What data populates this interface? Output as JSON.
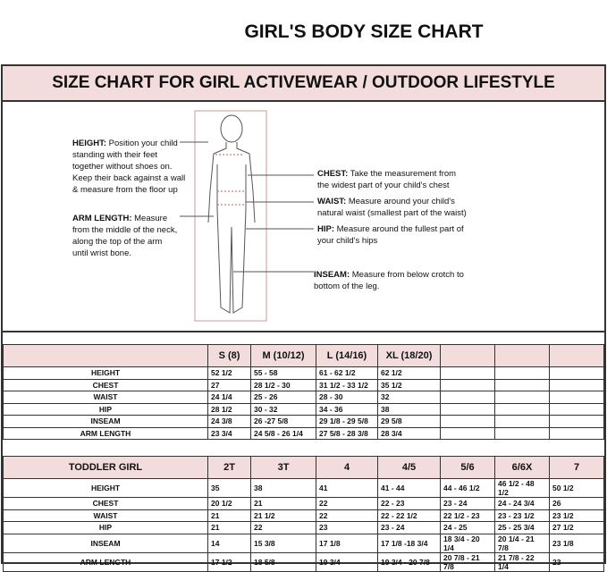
{
  "title": "GIRL'S BODY SIZE CHART",
  "subtitle": "SIZE CHART FOR GIRL ACTIVEWEAR / OUTDOOR LIFESTYLE",
  "notes": {
    "height": {
      "label": "HEIGHT:",
      "text": "Position your child standing with their feet together without shoes on. Keep their back against a wall & measure from the floor up"
    },
    "arm": {
      "label": "ARM LENGTH:",
      "text": "Measure from the middle of the neck, along the top of the arm until wrist bone."
    },
    "chest": {
      "label": "CHEST:",
      "text": "Take the measurement from the widest part of your child's chest"
    },
    "waist": {
      "label": "WAIST:",
      "text": "Measure around your child's natural waist (smallest part of the waist)"
    },
    "hip": {
      "label": "HIP:",
      "text": "Measure around the fullest part of your child's hips"
    },
    "inseam": {
      "label": "INSEAM:",
      "text": "Measure from below crotch to bottom of the leg."
    }
  },
  "girls_table": {
    "headers": [
      "",
      "S (8)",
      "M (10/12)",
      "L (14/16)",
      "XL (18/20)",
      "",
      "",
      ""
    ],
    "rows": [
      [
        "HEIGHT",
        "52 1/2",
        "55 - 58",
        "61 - 62 1/2",
        "62 1/2",
        "",
        "",
        ""
      ],
      [
        "CHEST",
        "27",
        "28 1/2 - 30",
        "31 1/2 - 33 1/2",
        "35 1/2",
        "",
        "",
        ""
      ],
      [
        "WAIST",
        "24 1/4",
        "25 - 26",
        "28 - 30",
        "32",
        "",
        "",
        ""
      ],
      [
        "HIP",
        "28 1/2",
        "30 - 32",
        "34 - 36",
        "38",
        "",
        "",
        ""
      ],
      [
        "INSEAM",
        "24 3/8",
        "26 -27 5/8",
        "29 1/8 - 29 5/8",
        "29 5/8",
        "",
        "",
        ""
      ],
      [
        "ARM LENGTH",
        "23 3/4",
        "24 5/8 - 26 1/4",
        "27 5/8 - 28 3/8",
        "28 3/4",
        "",
        "",
        ""
      ]
    ]
  },
  "toddler_table": {
    "headers": [
      "TODDLER GIRL",
      "2T",
      "3T",
      "4",
      "4/5",
      "5/6",
      "6/6X",
      "7"
    ],
    "rows": [
      [
        "HEIGHT",
        "35",
        "38",
        "41",
        "41 - 44",
        "44 - 46 1/2",
        "46 1/2 - 48 1/2",
        "50 1/2"
      ],
      [
        "CHEST",
        "20 1/2",
        "21",
        "22",
        "22 - 23",
        "23 - 24",
        "24 - 24 3/4",
        "26"
      ],
      [
        "WAIST",
        "21",
        "21 1/2",
        "22",
        "22 - 22 1/2",
        "22 1/2 - 23",
        "23 - 23 1/2",
        "23 1/2"
      ],
      [
        "HIP",
        "21",
        "22",
        "23",
        "23 - 24",
        "24 - 25",
        "25 - 25 3/4",
        "27 1/2"
      ],
      [
        "INSEAM",
        "14",
        "15 3/8",
        "17 1/8",
        "17 1/8 -18 3/4",
        "18 3/4 - 20 1/4",
        "20 1/4 - 21 7/8",
        "23 1/8"
      ],
      [
        "ARM LENGTH",
        "17 1/2",
        "18 5/8",
        "19 3/4",
        "19 3/4 - 20 7/8",
        "20 7/8 - 21 7/8",
        "21 7/8 - 22 1/4",
        "23"
      ]
    ]
  }
}
